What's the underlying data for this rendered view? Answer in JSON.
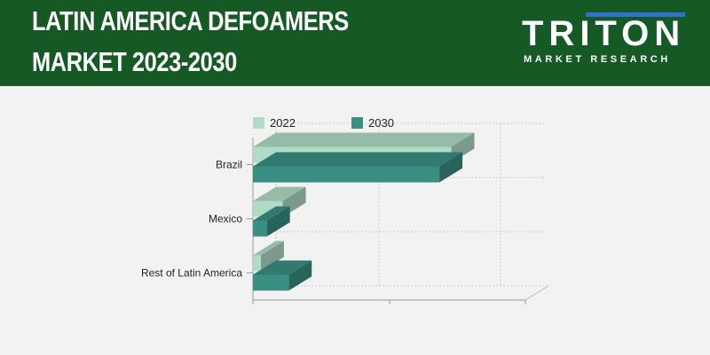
{
  "header": {
    "title_line1": "LATIN AMERICA DEFOAMERS",
    "title_line2": "MARKET 2023-2030",
    "logo_main": "TRITON",
    "logo_sub": "MARKET RESEARCH"
  },
  "colors": {
    "header_bg": "#155a24",
    "series_2022": "#b0dcc6",
    "series_2030": "#3a8f83",
    "logo_accent": "#2f6fd6"
  },
  "chart_data": {
    "type": "bar",
    "orientation": "horizontal",
    "style": "3d",
    "categories": [
      "Brazil",
      "Mexico",
      "Rest of Latin America"
    ],
    "series": [
      {
        "name": "2022",
        "values": [
          100,
          15,
          4
        ]
      },
      {
        "name": "2030",
        "values": [
          94,
          7,
          18
        ]
      }
    ],
    "xlim": [
      0,
      115
    ],
    "title": "",
    "xlabel": "",
    "ylabel": "",
    "legend": "top",
    "grid": true
  }
}
